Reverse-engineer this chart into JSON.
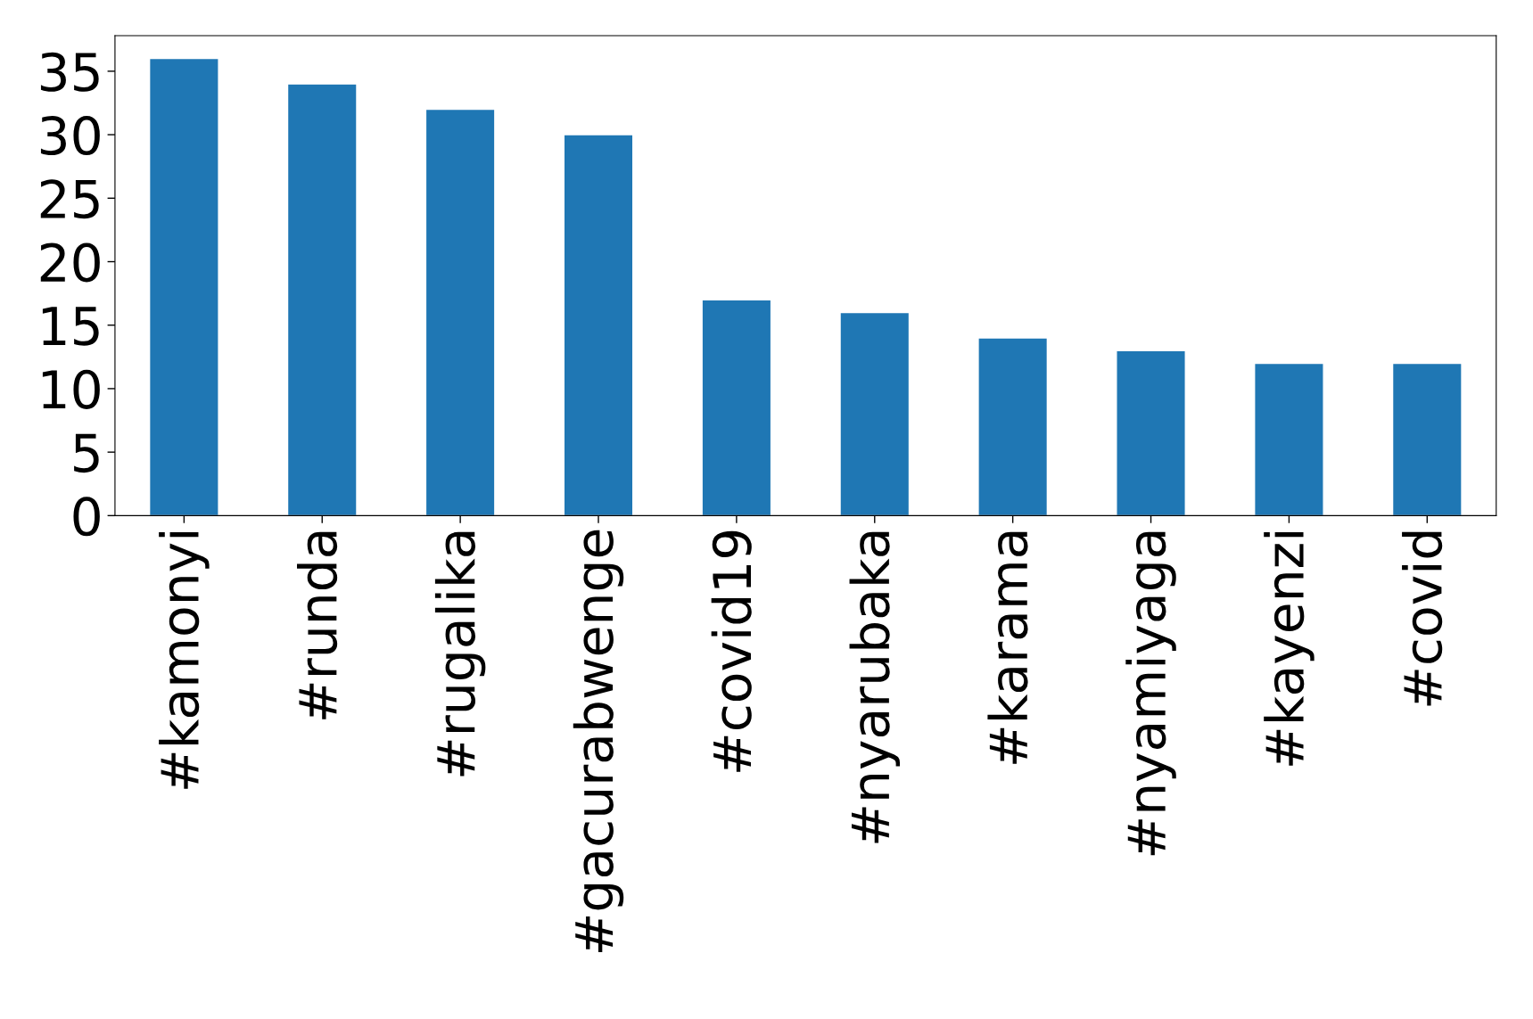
{
  "chart_data": {
    "type": "bar",
    "categories": [
      "#kamonyi",
      "#runda",
      "#rugalika",
      "#gacurabwenge",
      "#covid19",
      "#nyarubaka",
      "#karama",
      "#nyamiyaga",
      "#kayenzi",
      "#covid"
    ],
    "values": [
      36,
      34,
      32,
      30,
      17,
      16,
      14,
      13,
      12,
      12
    ],
    "color": "#1f77b4",
    "ylim": [
      0,
      37.8
    ],
    "yticks": [
      0,
      5,
      10,
      15,
      20,
      25,
      30,
      35
    ],
    "grid": false
  }
}
